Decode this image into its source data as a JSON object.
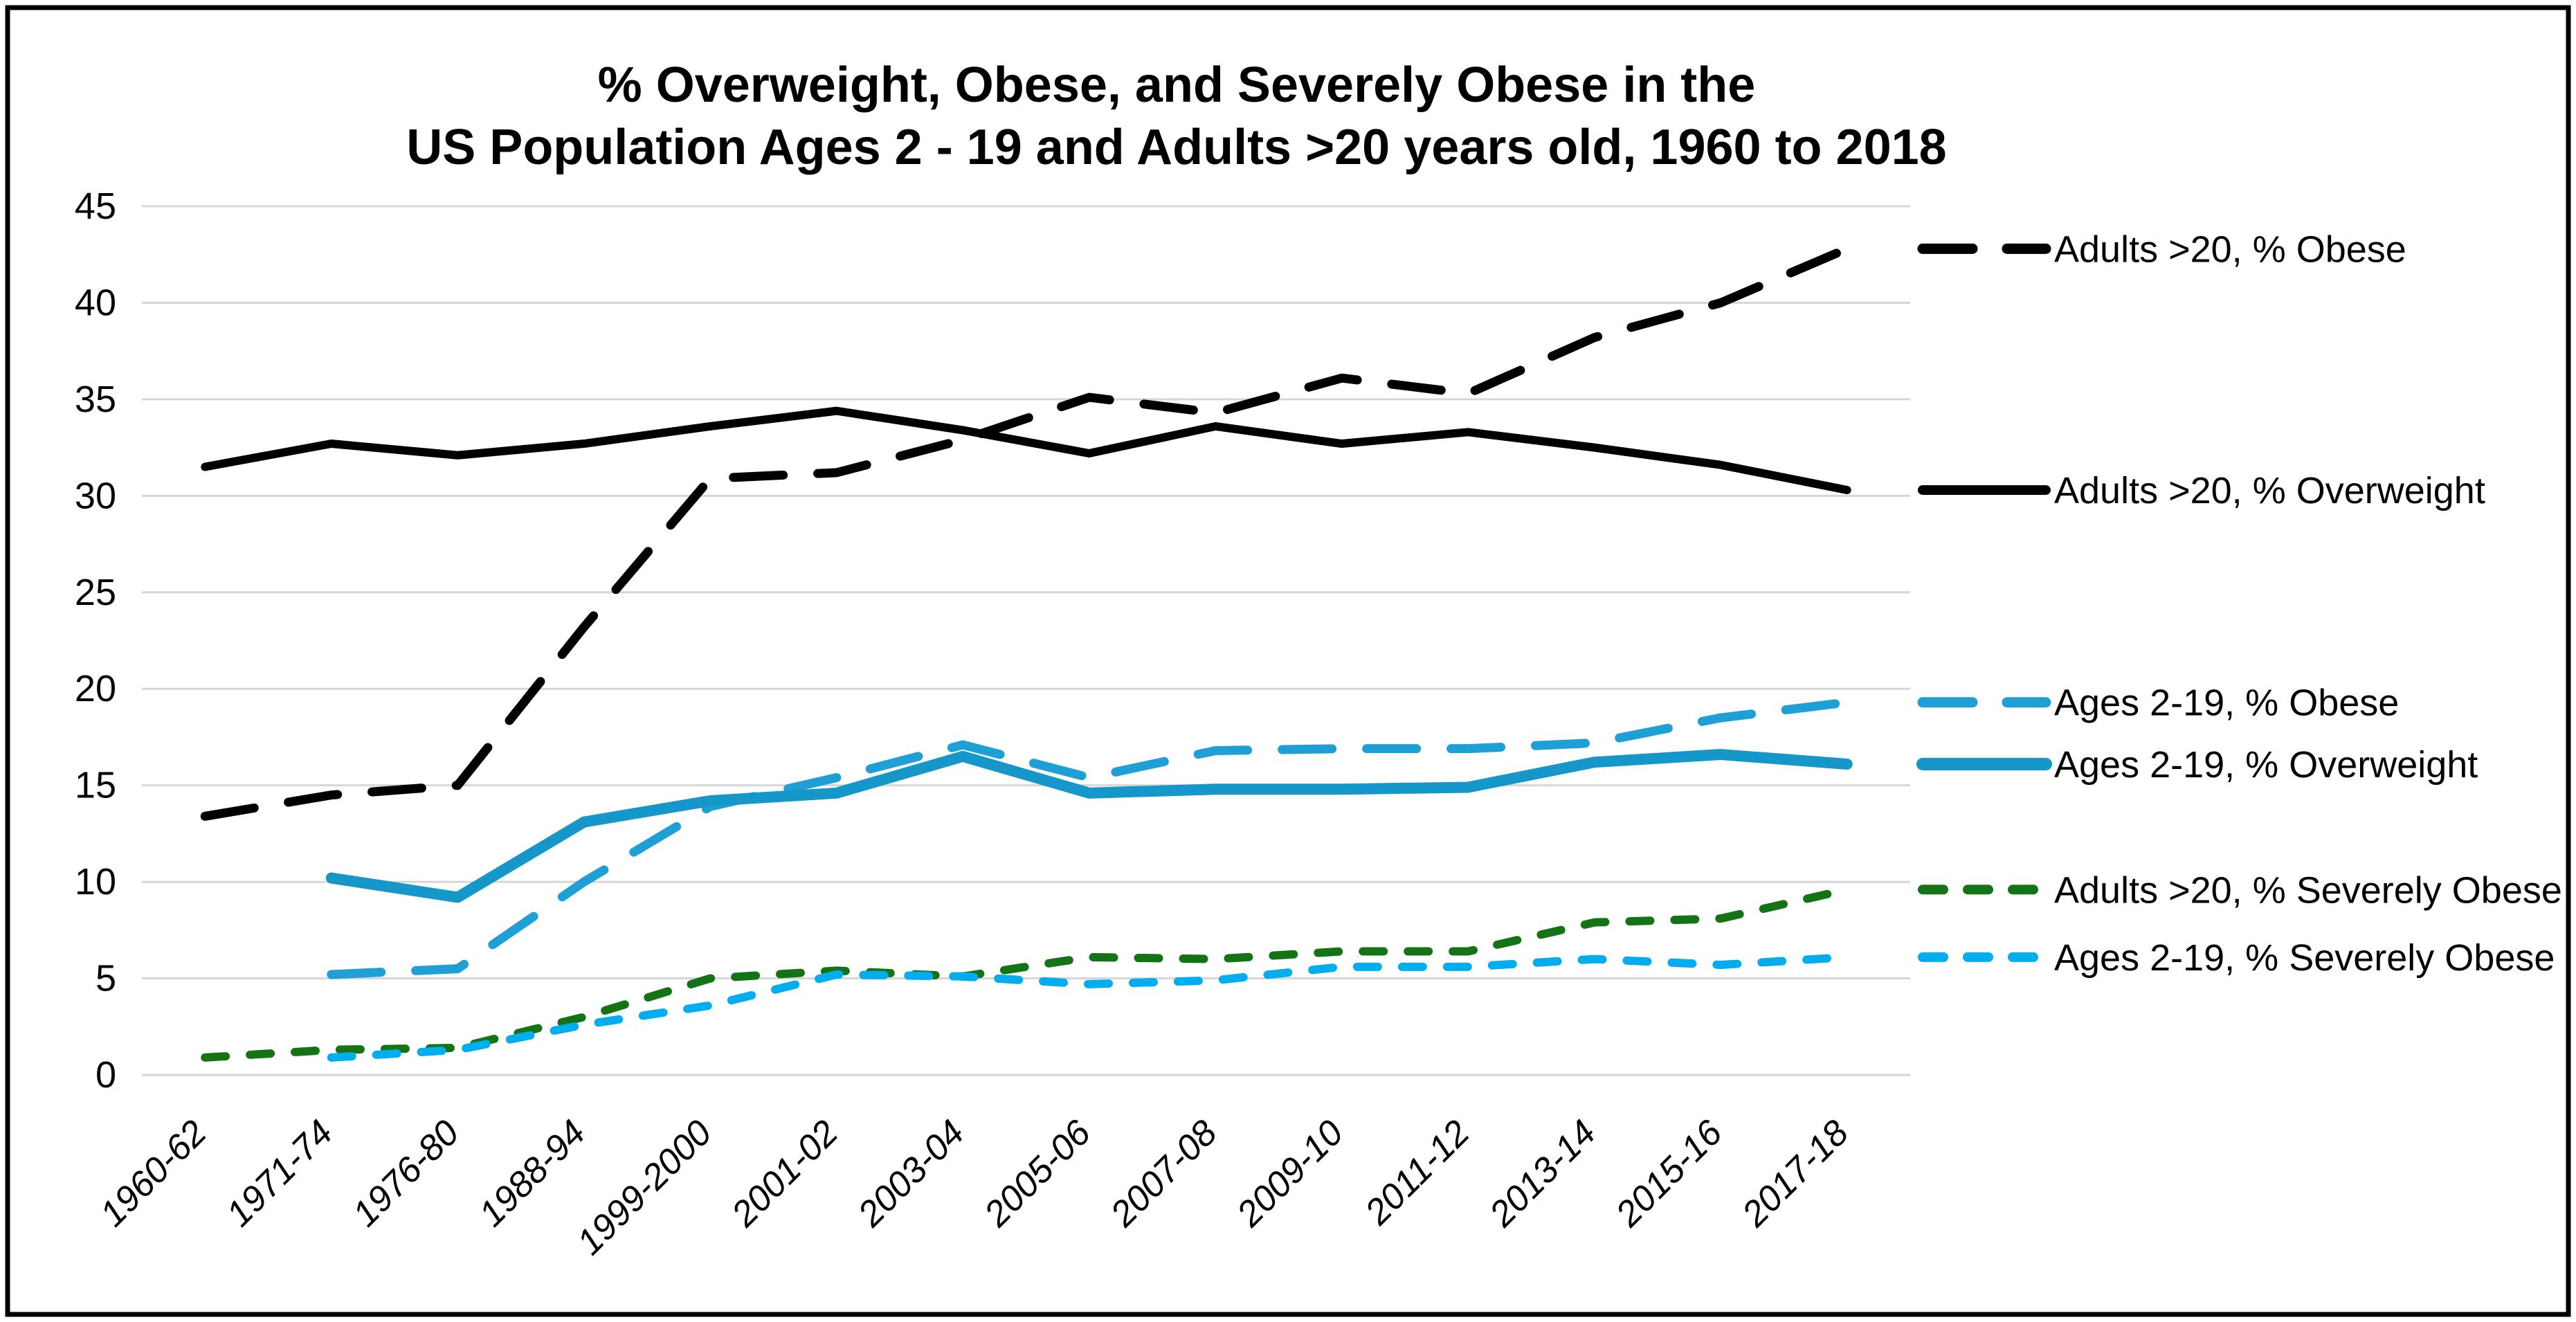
{
  "title": {
    "line1": "% Overweight, Obese, and Severely Obese in the",
    "line2": "US Population Ages 2 - 19 and Adults >20 years old, 1960 to 2018"
  },
  "colors": {
    "adults_black": "#000000",
    "youth_obese_blue": "#1E9FD6",
    "youth_overweight_blue": "#1697C9",
    "adults_severe_green": "#147314",
    "youth_severe_cyan": "#00AEEF",
    "gridline_gray": "#D6D6D6"
  },
  "chart_data": {
    "type": "line",
    "title": "% Overweight, Obese, and Severely Obese in the US Population Ages 2 - 19 and Adults >20 years old, 1960 to 2018",
    "xlabel": "",
    "ylabel": "",
    "categories": [
      "1960-62",
      "1971-74",
      "1976-80",
      "1988-94",
      "1999-2000",
      "2001-02",
      "2003-04",
      "2005-06",
      "2007-08",
      "2009-10",
      "2011-12",
      "2013-14",
      "2015-16",
      "2017-18"
    ],
    "ylim": [
      0,
      45
    ],
    "yticks": [
      0,
      5,
      10,
      15,
      20,
      25,
      30,
      35,
      40,
      45
    ],
    "grid": "horizontal",
    "legend_position": "right",
    "series": [
      {
        "name": "Adults >20, % Obese",
        "color": "#000000",
        "line_style": "dashed",
        "values": [
          13.4,
          14.5,
          15.0,
          23.2,
          30.9,
          31.2,
          32.9,
          35.1,
          34.3,
          36.1,
          35.3,
          38.2,
          40.0,
          42.8
        ]
      },
      {
        "name": "Adults >20, % Overweight",
        "color": "#000000",
        "line_style": "solid",
        "values": [
          31.5,
          32.7,
          32.1,
          32.7,
          33.6,
          34.4,
          33.4,
          32.2,
          33.6,
          32.7,
          33.3,
          32.5,
          31.6,
          30.3
        ]
      },
      {
        "name": "Ages 2-19, % Obese",
        "color": "#1E9FD6",
        "line_style": "dashed",
        "values": [
          null,
          5.2,
          5.5,
          10.0,
          13.9,
          15.4,
          17.1,
          15.4,
          16.8,
          16.9,
          16.9,
          17.2,
          18.5,
          19.3
        ]
      },
      {
        "name": "Ages 2-19, % Overweight",
        "color": "#1697C9",
        "line_style": "solid",
        "values": [
          null,
          10.2,
          9.2,
          13.1,
          14.2,
          14.6,
          16.5,
          14.6,
          14.8,
          14.8,
          14.9,
          16.2,
          16.6,
          16.1
        ]
      },
      {
        "name": "Adults >20, % Severely Obese",
        "color": "#147314",
        "line_style": "dashed-short",
        "values": [
          0.9,
          1.3,
          1.4,
          3.0,
          5.0,
          5.4,
          5.1,
          6.1,
          6.0,
          6.4,
          6.4,
          7.9,
          8.1,
          9.6
        ]
      },
      {
        "name": "Ages 2-19, % Severely Obese",
        "color": "#00AEEF",
        "line_style": "dashed-short",
        "values": [
          null,
          0.9,
          1.3,
          2.6,
          3.6,
          5.2,
          5.1,
          4.7,
          4.9,
          5.6,
          5.6,
          6.0,
          5.7,
          6.1
        ]
      }
    ]
  }
}
